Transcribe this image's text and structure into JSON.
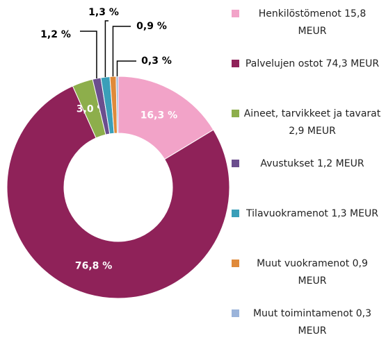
{
  "chart_data": {
    "type": "donut",
    "categories": [
      "Henkilöstömenot 15,8 MEUR",
      "Palvelujen ostot 74,3 MEUR",
      "Aineet, tarvikkeet ja tavarat 2,9 MEUR",
      "Avustukset 1,2 MEUR",
      "Tilavuokramenot 1,3 MEUR",
      "Muut vuokramenot 0,9 MEUR",
      "Muut toimintamenot 0,3 MEUR"
    ],
    "values": [
      16.3,
      76.8,
      3.0,
      1.2,
      1.3,
      0.9,
      0.3
    ],
    "value_labels": [
      "16,3 %",
      "76,8 %",
      "3,0 %",
      "1,2 %",
      "1,3 %",
      "0,9 %",
      "0,3 %"
    ],
    "colors": [
      "#f2a3c8",
      "#8f2259",
      "#8dae4b",
      "#6b4e8e",
      "#3a9fb9",
      "#e08a3a",
      "#9bb4da"
    ],
    "legend": "right"
  }
}
